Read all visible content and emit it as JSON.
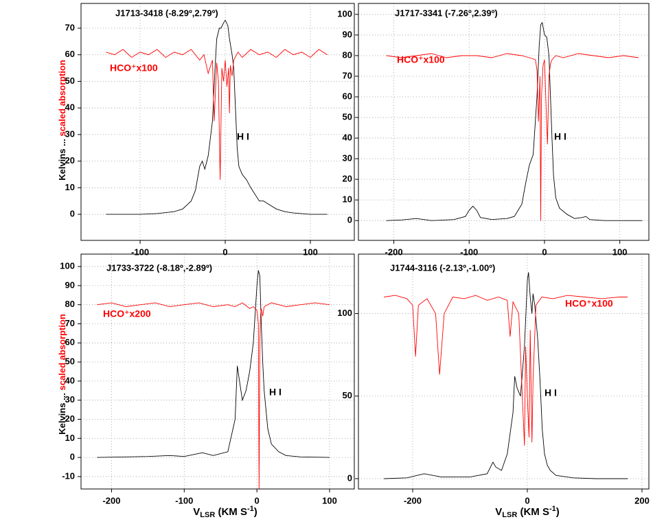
{
  "y_label": [
    "Kelvins ...",
    "scaled absorption"
  ],
  "x_label": [
    "V",
    "LSR",
    " (KM S",
    "-1",
    ")"
  ],
  "chart_data": [
    {
      "type": "line",
      "title": "J1713-3418  (-8.29º,2.79º)",
      "hco_label": "HCO⁺x100",
      "hi_label": "H I",
      "xlim": [
        -169.4,
        151.6
      ],
      "ylim": [
        -9.8,
        79.3
      ],
      "xticks": [
        -100,
        0,
        100
      ],
      "yticks": [
        0,
        10,
        20,
        30,
        40,
        50,
        60,
        70
      ],
      "grid": true,
      "series": [
        {
          "name": "HI",
          "color": "#000000",
          "x": [
            -140,
            -120,
            -100,
            -80,
            -60,
            -50,
            -40,
            -35,
            -30,
            -27,
            -24,
            -20,
            -15,
            -12,
            -10,
            -7,
            -5,
            -2,
            0,
            3,
            5,
            8,
            10,
            12,
            14,
            16,
            20,
            25,
            30,
            40,
            45,
            50,
            60,
            70,
            80,
            100,
            120
          ],
          "values": [
            0,
            0,
            0,
            0.3,
            1,
            2,
            5,
            9,
            18,
            20,
            17,
            22,
            35,
            55,
            66,
            70,
            70,
            72,
            73,
            71,
            66,
            60,
            55,
            40,
            25,
            18,
            15,
            13,
            10,
            5,
            5,
            4,
            2,
            1,
            0.5,
            0,
            0
          ]
        },
        {
          "name": "HCO+",
          "color": "#ff0000",
          "x": [
            -140,
            -130,
            -120,
            -110,
            -100,
            -90,
            -80,
            -70,
            -60,
            -50,
            -40,
            -30,
            -25,
            -20,
            -15,
            -13,
            -10,
            -8,
            -6,
            -4,
            -2,
            0,
            2,
            4,
            5,
            6,
            8,
            10,
            15,
            20,
            30,
            40,
            50,
            60,
            70,
            80,
            90,
            100,
            110,
            120
          ],
          "values": [
            61,
            60,
            62,
            59,
            61,
            60,
            62,
            59,
            61,
            60,
            62,
            58,
            60,
            53,
            58,
            35,
            57,
            50,
            13,
            55,
            50,
            58,
            48,
            55,
            38,
            56,
            52,
            58,
            61,
            59,
            62,
            60,
            61,
            59,
            62,
            60,
            61,
            59,
            62,
            60
          ]
        }
      ]
    },
    {
      "type": "line",
      "title": "J1717-3341  (-7.26º,2.39º)",
      "hco_label": "HCO⁺x100",
      "hi_label": "H I",
      "xlim": [
        -247,
        138.6
      ],
      "ylim": [
        -9.6,
        105.3
      ],
      "xticks": [
        -200,
        -100,
        0,
        100
      ],
      "yticks": [
        0,
        10,
        20,
        30,
        40,
        50,
        60,
        70,
        80,
        90,
        100
      ],
      "grid": true,
      "series": [
        {
          "name": "HI",
          "color": "#000000",
          "x": [
            -210,
            -190,
            -170,
            -150,
            -120,
            -105,
            -100,
            -95,
            -90,
            -85,
            -70,
            -50,
            -40,
            -30,
            -25,
            -20,
            -15,
            -10,
            -7,
            -5,
            -3,
            0,
            3,
            6,
            8,
            10,
            12,
            15,
            20,
            30,
            40,
            50,
            55,
            60,
            80,
            100,
            130
          ],
          "values": [
            0,
            0.3,
            1,
            0,
            0.5,
            2,
            5,
            7,
            5,
            1.5,
            0.5,
            1,
            2,
            8,
            18,
            27,
            32,
            60,
            85,
            95,
            96,
            90,
            89,
            80,
            60,
            40,
            22,
            11,
            6,
            3,
            1,
            1.5,
            2,
            0.5,
            0,
            0,
            0
          ]
        },
        {
          "name": "HCO+",
          "color": "#ff0000",
          "x": [
            -210,
            -190,
            -170,
            -150,
            -130,
            -110,
            -90,
            -70,
            -50,
            -30,
            -20,
            -12,
            -10,
            -8,
            -6,
            -5,
            -4,
            -2,
            0,
            2,
            4,
            6,
            8,
            10,
            15,
            25,
            45,
            65,
            85,
            105,
            125
          ],
          "values": [
            80,
            79,
            80,
            81,
            79,
            80,
            80,
            79,
            81,
            80,
            79,
            78,
            73,
            48,
            70,
            0,
            60,
            75,
            78,
            56,
            37,
            70,
            76,
            78,
            80,
            79,
            81,
            80,
            79,
            80,
            79
          ]
        }
      ]
    },
    {
      "type": "line",
      "title": "J1733-3722 (-8.18º,-2.89º)",
      "hco_label": "HCO⁺x200",
      "hi_label": "H I",
      "xlim": [
        -242,
        134
      ],
      "ylim": [
        -16.5,
        106.5
      ],
      "xticks": [
        -200,
        -100,
        0,
        100
      ],
      "yticks": [
        -10,
        0,
        10,
        20,
        30,
        40,
        50,
        60,
        70,
        80,
        90,
        100
      ],
      "grid": true,
      "series": [
        {
          "name": "HI",
          "color": "#000000",
          "x": [
            -220,
            -180,
            -150,
            -120,
            -100,
            -75,
            -60,
            -40,
            -30,
            -27,
            -24,
            -20,
            -15,
            -10,
            -5,
            0,
            2,
            4,
            6,
            8,
            10,
            15,
            20,
            30,
            40,
            60,
            100
          ],
          "values": [
            0,
            0.3,
            0.5,
            1,
            0.5,
            2.5,
            1,
            3,
            20,
            48,
            40,
            30,
            35,
            45,
            60,
            90,
            98,
            95,
            70,
            50,
            35,
            15,
            7,
            3,
            1,
            0.3,
            0
          ]
        },
        {
          "name": "HCO+",
          "color": "#ff0000",
          "x": [
            -220,
            -200,
            -180,
            -160,
            -140,
            -120,
            -100,
            -80,
            -60,
            -40,
            -30,
            -20,
            -10,
            -5,
            0,
            2,
            3,
            4,
            5,
            6,
            8,
            10,
            20,
            30,
            40,
            60,
            80,
            100
          ],
          "values": [
            80,
            81,
            79,
            80,
            81,
            79,
            80,
            81,
            79,
            80,
            79,
            81,
            78,
            79,
            77,
            70,
            -17,
            60,
            75,
            78,
            74,
            79,
            81,
            80,
            79,
            80,
            81,
            80
          ]
        }
      ]
    },
    {
      "type": "line",
      "title": "J1744-3116 (-2.13º,-1.00º)",
      "hco_label": "HCO⁺x100",
      "hi_label": "H I",
      "xlim": [
        -294.6,
        212
      ],
      "ylim": [
        -6.25,
        136
      ],
      "xticks": [
        -200,
        0,
        200
      ],
      "yticks": [
        0,
        50,
        100
      ],
      "grid": true,
      "series": [
        {
          "name": "HI",
          "color": "#000000",
          "x": [
            -250,
            -210,
            -180,
            -150,
            -100,
            -70,
            -60,
            -55,
            -45,
            -35,
            -25,
            -22,
            -18,
            -12,
            -5,
            0,
            2,
            5,
            8,
            10,
            13,
            18,
            22,
            26,
            30,
            35,
            40,
            50,
            80,
            120,
            175
          ],
          "values": [
            0,
            0.5,
            3,
            1,
            1,
            3,
            10,
            7,
            5,
            15,
            40,
            62,
            55,
            50,
            80,
            120,
            125,
            110,
            100,
            112,
            105,
            85,
            60,
            30,
            15,
            8,
            5,
            2,
            0.5,
            0,
            0
          ]
        },
        {
          "name": "HCO+",
          "color": "#ff0000",
          "x": [
            -250,
            -230,
            -210,
            -200,
            -195,
            -190,
            -175,
            -160,
            -153,
            -145,
            -130,
            -110,
            -90,
            -70,
            -50,
            -35,
            -30,
            -25,
            -15,
            -10,
            -5,
            -3,
            0,
            3,
            5,
            8,
            10,
            15,
            25,
            45,
            70,
            100,
            130,
            160,
            175
          ],
          "values": [
            110,
            111,
            109,
            105,
            74,
            105,
            109,
            100,
            63,
            100,
            110,
            109,
            111,
            108,
            110,
            108,
            86,
            107,
            100,
            60,
            20,
            80,
            50,
            25,
            90,
            22,
            60,
            105,
            110,
            109,
            111,
            110,
            109,
            110,
            110
          ]
        }
      ]
    }
  ]
}
